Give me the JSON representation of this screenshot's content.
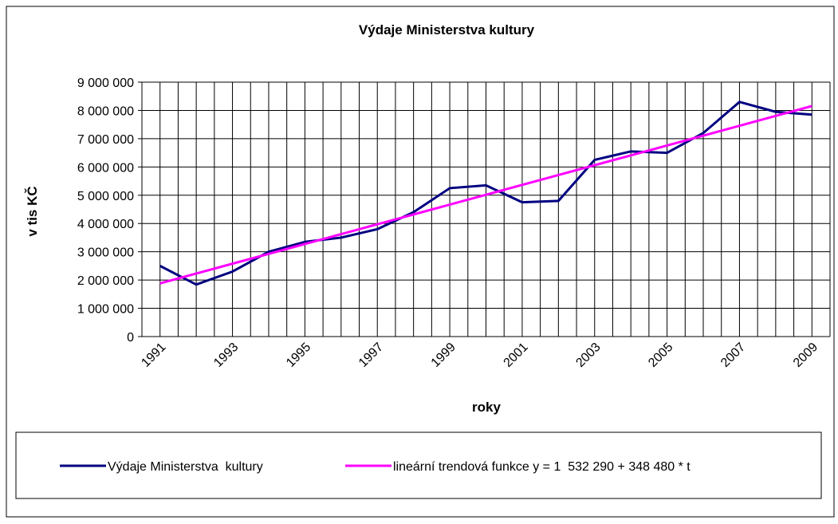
{
  "chart_data": {
    "type": "line",
    "title": "Výdaje Ministerstva kultury",
    "x_label": "roky",
    "y_label": "v tis KČ",
    "categories": [
      "1991",
      null,
      "1993",
      null,
      "1995",
      null,
      "1997",
      null,
      "1999",
      null,
      "2001",
      null,
      "2003",
      null,
      "2005",
      null,
      "2007",
      null,
      "2009"
    ],
    "series": [
      {
        "name": "Výdaje Ministerstva  kultury",
        "color": "#000080",
        "values": [
          2500000,
          1840000,
          2300000,
          3000000,
          3350000,
          3500000,
          3800000,
          4400000,
          5250000,
          5350000,
          4750000,
          4800000,
          6250000,
          6550000,
          6500000,
          7200000,
          8300000,
          7950000,
          7850000
        ]
      },
      {
        "name": "lineární trendová funkce y = 1  532 290 + 348 480 * t",
        "color": "#ff00ff",
        "values": [
          1880770,
          2229250,
          2577730,
          2926210,
          3274690,
          3623170,
          3971650,
          4320130,
          4668610,
          5017090,
          5365570,
          5714050,
          6062530,
          6411010,
          6759490,
          7107970,
          7456450,
          7804930,
          8153410
        ]
      }
    ],
    "ylim": [
      0,
      9000000
    ],
    "yticks": [
      0,
      {
        "value": 1000000,
        "label": "1 000 000"
      },
      {
        "value": 2000000,
        "label": "2 000 000"
      },
      {
        "value": 3000000,
        "label": "3 000 000"
      },
      {
        "value": 4000000,
        "label": "4 000 000"
      },
      {
        "value": 5000000,
        "label": "5 000 000"
      },
      {
        "value": 6000000,
        "label": "6 000 000"
      },
      {
        "value": 7000000,
        "label": "7 000 000"
      },
      {
        "value": 8000000,
        "label": "8 000 000"
      },
      {
        "value": 9000000,
        "label": "9 000 000"
      }
    ],
    "grid": true,
    "legend": "bottom"
  }
}
